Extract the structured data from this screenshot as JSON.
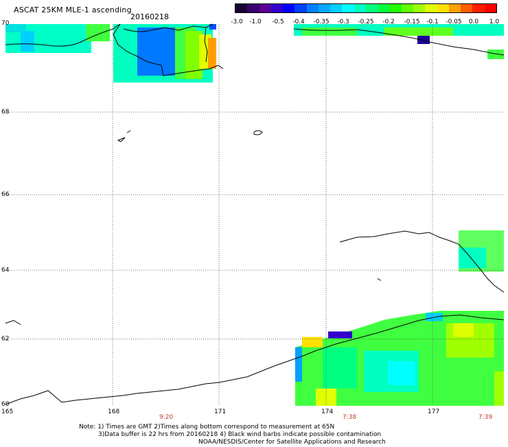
{
  "header": {
    "title": "ASCAT 25KM MLE-1 ascending",
    "date": "20160218"
  },
  "colorbar": {
    "colors": [
      "#1a0033",
      "#3b006b",
      "#5a0099",
      "#3300cc",
      "#0000ff",
      "#0040ff",
      "#0080ff",
      "#00a8ff",
      "#00d0ff",
      "#00ffff",
      "#00ffc0",
      "#00ff80",
      "#00ff40",
      "#20ff00",
      "#60ff00",
      "#a0ff00",
      "#e0ff00",
      "#ffe000",
      "#ffa000",
      "#ff6000",
      "#ff2000",
      "#ff0000"
    ],
    "labels": [
      "-3.0",
      "-1.0",
      "-0.5",
      "-0.4",
      "-0.35",
      "-0.3",
      "-0.25",
      "-0.2",
      "-0.15",
      "-0.1",
      "-0.05",
      "0.0",
      "1.0"
    ]
  },
  "axes": {
    "lat_labels": [
      "70",
      "68",
      "66",
      "64",
      "62",
      "60"
    ],
    "lon_labels": [
      "165",
      "168",
      "171",
      "174",
      "177"
    ],
    "time_labels": [
      "9:20",
      "7:38",
      "7:39"
    ]
  },
  "notes": {
    "line1": "Note: 1) Times are GMT 2)Times along bottom correspond to measurement at 65N",
    "line2": "3)Data buffer is 22 hrs from 20160218 4) Black wind barbs indicate possible contamination",
    "line3": "NOAA/NESDIS/Center for Satellite Applications and Research"
  }
}
